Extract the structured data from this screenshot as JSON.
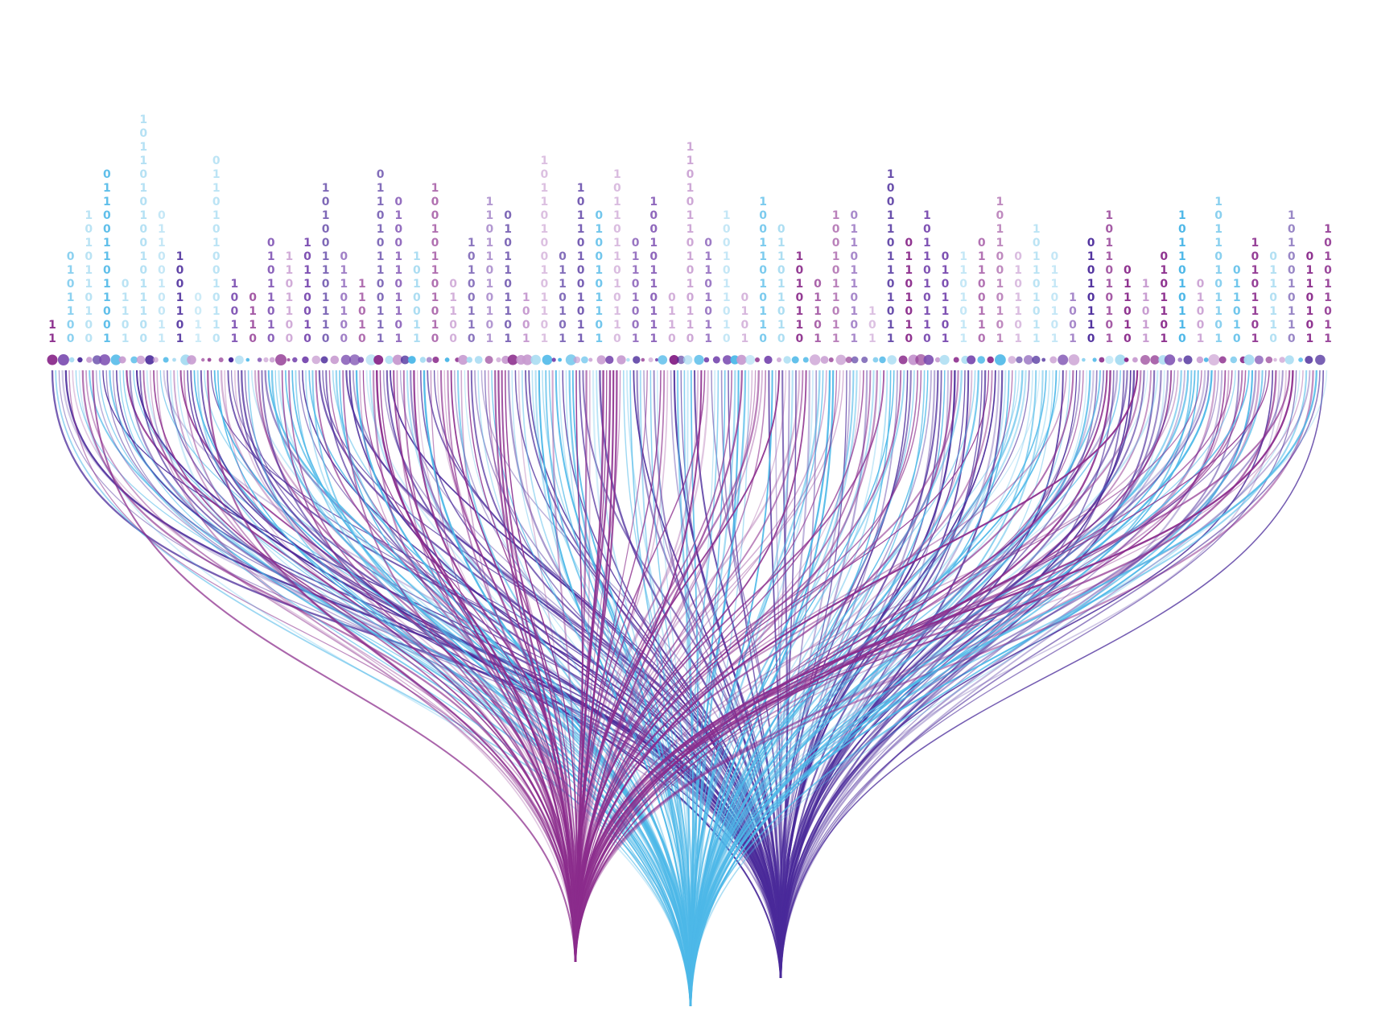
{
  "columns": [
    "11",
    "0101100",
    "1010110100",
    "0110011011001",
    "01101",
    "10110101001011100",
    "0110010011",
    "1001101",
    "0011",
    "01101010010110",
    "10011",
    "0110",
    "01011010",
    "1101100",
    "10110010",
    "101001101110",
    "0110100",
    "11010",
    "0110101100111",
    "01001101101",
    "1010011",
    "100101101010",
    "01100",
    "10100110",
    "11011010101",
    "0101101101",
    "1001",
    "10110100101101",
    "0110101",
    "101101001011",
    "0100101101",
    "1011011010110",
    "01101001",
    "10010110111",
    "0110",
    "110101101010110",
    "01101011",
    "1001011010",
    "0101",
    "10011010110",
    "011011010",
    "1010110",
    "01101",
    "1001011011",
    "0110110101",
    "101",
    "1001101101011",
    "01101010",
    "1011010110",
    "0101101",
    "1101011",
    "01100110",
    "10110010101",
    "0101101",
    "101101011",
    "0110101",
    "1001",
    "01010110",
    "1011010101",
    "011010",
    "11011",
    "0101101",
    "1011010110",
    "01001",
    "10110101101",
    "011010",
    "10101101",
    "0110110",
    "1010010110",
    "0110101",
    "101011011"
  ]
}
